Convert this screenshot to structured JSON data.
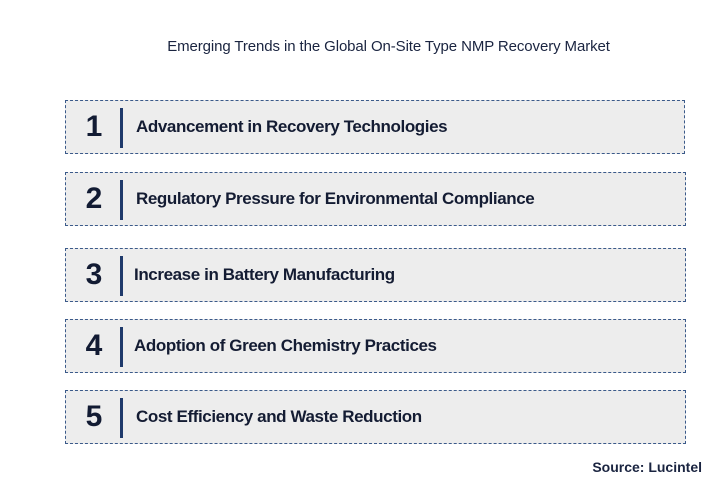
{
  "title": "Emerging Trends in the Global On-Site Type NMP Recovery Market",
  "trends": [
    {
      "number": "1",
      "label": "Advancement in Recovery Technologies"
    },
    {
      "number": "2",
      "label": "Regulatory Pressure for Environmental Compliance"
    },
    {
      "number": "3",
      "label": "Increase in Battery Manufacturing"
    },
    {
      "number": "4",
      "label": "Adoption of Green Chemistry Practices"
    },
    {
      "number": "5",
      "label": "Cost Efficiency and Waste Reduction"
    }
  ],
  "source": "Source: Lucintel",
  "colors": {
    "row_background": "#ededed",
    "row_border": "#3b5a8a",
    "accent_bar": "#1f3a6b",
    "text": "#141c33"
  }
}
